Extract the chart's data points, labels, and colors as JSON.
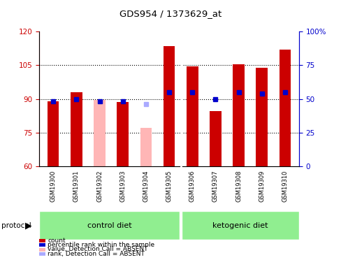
{
  "title": "GDS954 / 1373629_at",
  "samples": [
    "GSM19300",
    "GSM19301",
    "GSM19302",
    "GSM19303",
    "GSM19304",
    "GSM19305",
    "GSM19306",
    "GSM19307",
    "GSM19308",
    "GSM19309",
    "GSM19310"
  ],
  "bar_values": [
    89.0,
    93.0,
    89.5,
    88.5,
    77.0,
    113.5,
    104.5,
    84.5,
    105.5,
    104.0,
    112.0
  ],
  "bar_absent": [
    false,
    false,
    true,
    false,
    true,
    false,
    false,
    false,
    false,
    false,
    false
  ],
  "rank_values_right": [
    48,
    50,
    48,
    48,
    46,
    55,
    55,
    50,
    55,
    54,
    55
  ],
  "rank_absent": [
    false,
    false,
    false,
    false,
    true,
    false,
    false,
    false,
    false,
    false,
    false
  ],
  "ylim_left": [
    60,
    120
  ],
  "ylim_right": [
    0,
    100
  ],
  "yticks_left": [
    60,
    75,
    90,
    105,
    120
  ],
  "yticks_right": [
    0,
    25,
    50,
    75,
    100
  ],
  "bar_color_present": "#CC0000",
  "bar_color_absent": "#FFB6B6",
  "rank_color_present": "#0000CC",
  "rank_color_absent": "#AAAAFF",
  "tick_color_left": "#CC0000",
  "tick_color_right": "#0000CC",
  "bar_width": 0.5,
  "rank_marker_size": 5,
  "legend_items": [
    {
      "label": "count",
      "color": "#CC0000"
    },
    {
      "label": "percentile rank within the sample",
      "color": "#0000CC"
    },
    {
      "label": "value, Detection Call = ABSENT",
      "color": "#FFB6B6"
    },
    {
      "label": "rank, Detection Call = ABSENT",
      "color": "#AAAAFF"
    }
  ]
}
